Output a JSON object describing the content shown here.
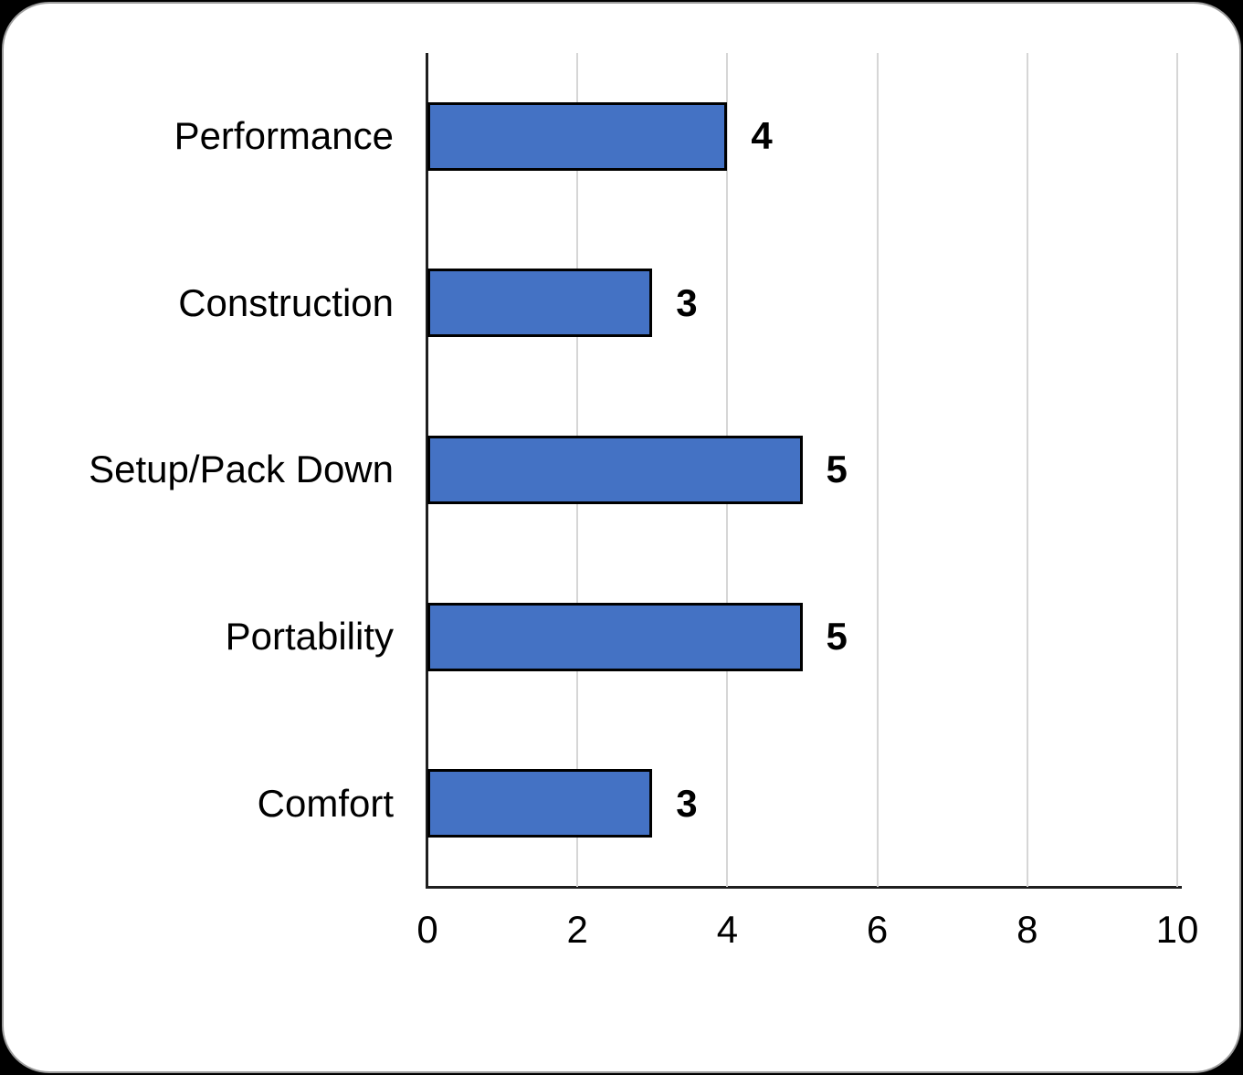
{
  "chart_data": {
    "type": "bar",
    "orientation": "horizontal",
    "title": "",
    "xlabel": "",
    "ylabel": "",
    "categories": [
      "Performance",
      "Construction",
      "Setup/Pack Down",
      "Portability",
      "Comfort"
    ],
    "values": [
      4,
      3,
      5,
      5,
      3
    ],
    "data_labels": [
      "4",
      "3",
      "5",
      "5",
      "3"
    ],
    "xlim": [
      0,
      10
    ],
    "x_ticks": [
      0,
      2,
      4,
      6,
      8,
      10
    ],
    "grid": "vertical-gridlines-on",
    "legend": "none",
    "colors": {
      "bar_fill": "#4472C4",
      "bar_border": "#000000",
      "gridline": "#D6D6D6",
      "axis_line": "#1F1F1F",
      "text": "#000000",
      "card_background": "#FFFFFF",
      "card_border": "#9C9C9C",
      "page_background": "#000000"
    }
  }
}
